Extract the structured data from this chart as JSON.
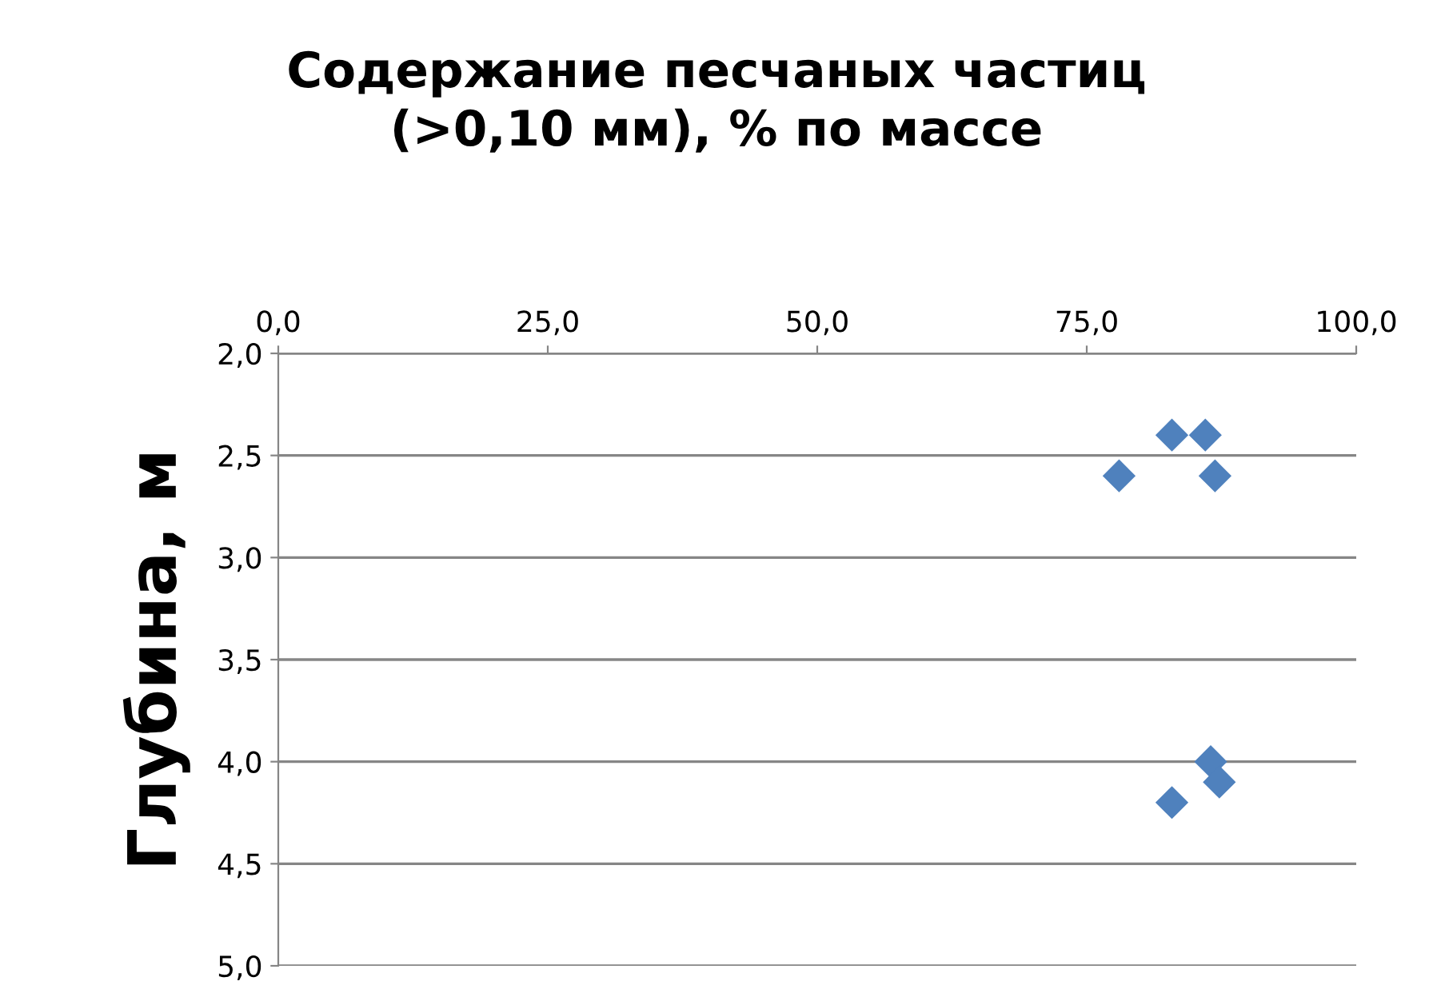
{
  "chart_data": {
    "type": "scatter",
    "title": "Содержание песчаных частиц\n(>0,10 мм), % по массе",
    "ylabel": "Глубина, м",
    "x": [
      82.9,
      86.0,
      78.0,
      86.9,
      86.5,
      86.6,
      87.3,
      82.9
    ],
    "values": [
      2.4,
      2.4,
      2.6,
      2.6,
      4.0,
      null,
      4.1,
      4.2
    ],
    "color": "#4f81bd",
    "marker": "diamond",
    "xlim": [
      0,
      100
    ],
    "xticks": [
      {
        "value": 0,
        "label": "0,0"
      },
      {
        "value": 25,
        "label": "25,0"
      },
      {
        "value": 50,
        "label": "50,0"
      },
      {
        "value": 75,
        "label": "75,0"
      },
      {
        "value": 100,
        "label": "100,0"
      }
    ],
    "ylim": [
      5,
      2
    ],
    "yticks": [
      {
        "value": 2,
        "label": "2,0"
      },
      {
        "value": 2.5,
        "label": "2,5"
      },
      {
        "value": 3,
        "label": "3,0"
      },
      {
        "value": 3.5,
        "label": "3,5"
      },
      {
        "value": 4,
        "label": "4,0"
      },
      {
        "value": 4.5,
        "label": "4,5"
      },
      {
        "value": 5,
        "label": "5,0"
      }
    ],
    "grid": "y"
  }
}
